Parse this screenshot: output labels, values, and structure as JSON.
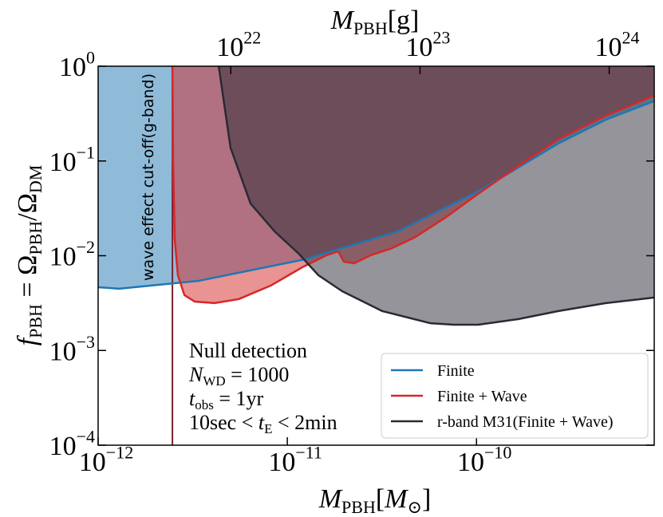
{
  "chart_data": {
    "type": "area",
    "x_label": [
      "M",
      "PBH",
      "[",
      "M",
      "⊙",
      "]"
    ],
    "top_label": [
      "M",
      "PBH",
      "[g]"
    ],
    "y_label": [
      "f",
      "PBH",
      " = Ω",
      "PBH",
      "/Ω",
      "DM"
    ],
    "log_x": true,
    "log_y": true,
    "xlim": [
      1e-12,
      8.7e-10
    ],
    "ylim": [
      0.0001,
      1
    ],
    "xticks": [
      {
        "value": 1e-12,
        "label": "10",
        "exponent": "−12"
      },
      {
        "value": 1e-11,
        "label": "10",
        "exponent": "−11"
      },
      {
        "value": 1e-10,
        "label": "10",
        "exponent": "−10"
      }
    ],
    "yticks": [
      {
        "value": 0.0001,
        "label": "10",
        "exponent": "−4"
      },
      {
        "value": 0.001,
        "label": "10",
        "exponent": "−3"
      },
      {
        "value": 0.01,
        "label": "10",
        "exponent": "−2"
      },
      {
        "value": 0.1,
        "label": "10",
        "exponent": "−1"
      },
      {
        "value": 1,
        "label": "10",
        "exponent": "0"
      }
    ],
    "x2lim": [
      1.989e+21,
      1.73e+24
    ],
    "x2ticks": [
      {
        "value": 1e+22,
        "label": "10",
        "exponent": "22"
      },
      {
        "value": 1e+23,
        "label": "10",
        "exponent": "23"
      },
      {
        "value": 1e+24,
        "label": "10",
        "exponent": "24"
      }
    ],
    "series": [
      {
        "name": "Finite",
        "color": "#1f77b4",
        "x": [
          1e-12,
          1.29e-12,
          3.4e-12,
          1.24e-11,
          3.86e-11,
          1.02e-10,
          2.69e-10,
          4.83e-10,
          8.65e-10
        ],
        "values": [
          0.00465,
          0.00448,
          0.00543,
          0.00916,
          0.0181,
          0.0476,
          0.152,
          0.273,
          0.426
        ]
      },
      {
        "name": "Finite + Wave",
        "color": "#d62728",
        "x": [
          2.47e-12,
          2.49e-12,
          2.54e-12,
          2.64e-12,
          2.86e-12,
          3.24e-12,
          4.13e-12,
          5.53e-12,
          8.16e-12,
          1.2e-11,
          1.61e-11,
          1.86e-11,
          1.99e-11,
          2.26e-11,
          2.75e-11,
          3.5e-11,
          4.69e-11,
          6.92e-11,
          1.02e-10,
          1.66e-10,
          2.69e-10,
          4.83e-10,
          8.65e-10
        ],
        "values": [
          1,
          0.103,
          0.0149,
          0.00622,
          0.00383,
          0.00328,
          0.00316,
          0.00348,
          0.00483,
          0.00755,
          0.0101,
          0.0111,
          0.00865,
          0.00832,
          0.0101,
          0.0118,
          0.0155,
          0.0256,
          0.045,
          0.0885,
          0.168,
          0.301,
          0.488
        ]
      },
      {
        "name": "r-band M31(Finite + Wave)",
        "color": "#2a2a35",
        "x": [
          4.34e-12,
          5.01e-12,
          6.39e-12,
          8.56e-12,
          1.15e-11,
          1.46e-11,
          1.95e-11,
          3.18e-11,
          5.69e-11,
          7.62e-11,
          1.02e-10,
          1.66e-10,
          2.69e-10,
          4.83e-10,
          8.65e-10
        ],
        "values": [
          1,
          0.138,
          0.0356,
          0.0181,
          0.0105,
          0.00622,
          0.00422,
          0.0026,
          0.00194,
          0.00187,
          0.00187,
          0.00214,
          0.0026,
          0.00316,
          0.00361
        ]
      }
    ],
    "cutoff": {
      "x": 2.47e-12,
      "label": "wave effect cut-off(g-band)",
      "color": "#7b1f2f"
    },
    "annotation": [
      [
        "Null detection"
      ],
      [
        "N",
        "WD",
        " = 1000"
      ],
      [
        "t",
        "obs",
        " = 1yr"
      ],
      [
        "10sec < ",
        "t",
        "E",
        " < 2min"
      ]
    ],
    "legend": "lower right"
  }
}
